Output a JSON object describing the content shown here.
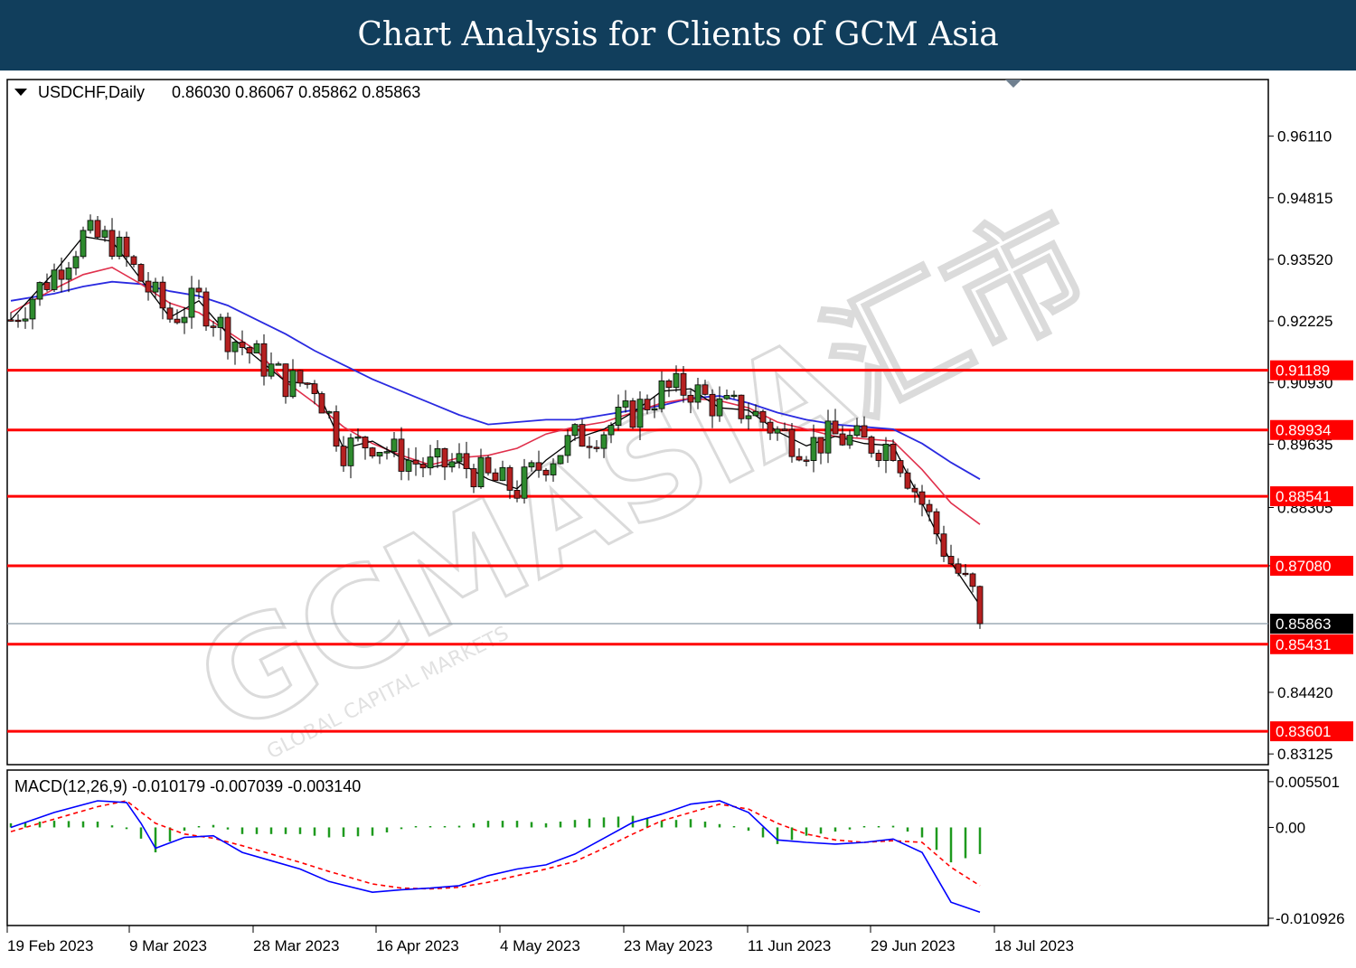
{
  "banner": {
    "title": "Chart Analysis for Clients of GCM Asia"
  },
  "price_panel": {
    "symbol_label": "USDCHF,Daily",
    "ohlc_label": "0.86030 0.86067 0.85862 0.85863",
    "y_ticks": [
      "0.96110",
      "0.94815",
      "0.93520",
      "0.92225",
      "0.90930",
      "0.89635",
      "0.88305",
      "0.87080",
      "0.84420",
      "0.83125"
    ],
    "levels": [
      "0.91189",
      "0.89934",
      "0.88541",
      "0.87080",
      "0.85431",
      "0.83601"
    ],
    "current_price": "0.85863",
    "watermark_text": "GCMASIA汇市",
    "watermark_sub": "GLOBAL CAPITAL MARKETS"
  },
  "macd_panel": {
    "label": "MACD(12,26,9) -0.010179 -0.007039 -0.003140",
    "y_ticks": [
      "0.005501",
      "0.00",
      "-0.010926"
    ]
  },
  "x_axis": {
    "labels": [
      "19 Feb 2023",
      "9 Mar 2023",
      "28 Mar 2023",
      "16 Apr 2023",
      "4 May 2023",
      "23 May 2023",
      "11 Jun 2023",
      "29 Jun 2023",
      "18 Jul 2023"
    ]
  },
  "colors": {
    "banner": "#113e5c",
    "level_line": "#ff0000",
    "ma_fast": "#000000",
    "ma_mid": "#e0304c",
    "ma_slow": "#2a2ae0",
    "bull": "#2e8b2e",
    "bear": "#b52020",
    "macd_line": "#0000ff",
    "signal_line": "#ff0000",
    "histogram": "#1e9a1e"
  },
  "chart_data": {
    "type": "candlestick",
    "title": "USDCHF,Daily",
    "ylim": [
      0.829,
      0.973
    ],
    "last_bar": {
      "open": 0.8603,
      "high": 0.86067,
      "low": 0.85862,
      "close": 0.85863
    },
    "support_resistance": [
      0.91189,
      0.89934,
      0.88541,
      0.8708,
      0.85431,
      0.83601
    ],
    "ma_fast": [
      [
        0,
        0.9225
      ],
      [
        6,
        0.9325
      ],
      [
        10,
        0.94
      ],
      [
        14,
        0.939
      ],
      [
        18,
        0.931
      ],
      [
        22,
        0.923
      ],
      [
        26,
        0.9265
      ],
      [
        30,
        0.9195
      ],
      [
        34,
        0.9145
      ],
      [
        38,
        0.9095
      ],
      [
        42,
        0.909
      ],
      [
        46,
        0.8955
      ],
      [
        50,
        0.897
      ],
      [
        54,
        0.8935
      ],
      [
        58,
        0.8915
      ],
      [
        62,
        0.8925
      ],
      [
        66,
        0.889
      ],
      [
        70,
        0.887
      ],
      [
        74,
        0.893
      ],
      [
        78,
        0.8975
      ],
      [
        82,
        0.8995
      ],
      [
        86,
        0.903
      ],
      [
        90,
        0.9075
      ],
      [
        94,
        0.908
      ],
      [
        98,
        0.904
      ],
      [
        102,
        0.9035
      ],
      [
        106,
        0.899
      ],
      [
        110,
        0.896
      ],
      [
        114,
        0.898
      ],
      [
        118,
        0.8965
      ],
      [
        122,
        0.896
      ],
      [
        126,
        0.884
      ],
      [
        130,
        0.8715
      ],
      [
        134,
        0.8625
      ]
    ],
    "ma_mid": [
      [
        0,
        0.924
      ],
      [
        6,
        0.929
      ],
      [
        10,
        0.932
      ],
      [
        14,
        0.9335
      ],
      [
        18,
        0.93
      ],
      [
        22,
        0.926
      ],
      [
        26,
        0.924
      ],
      [
        30,
        0.92
      ],
      [
        34,
        0.916
      ],
      [
        38,
        0.9095
      ],
      [
        42,
        0.905
      ],
      [
        46,
        0.9
      ],
      [
        50,
        0.8965
      ],
      [
        54,
        0.894
      ],
      [
        58,
        0.892
      ],
      [
        62,
        0.8935
      ],
      [
        66,
        0.894
      ],
      [
        70,
        0.8955
      ],
      [
        74,
        0.8985
      ],
      [
        78,
        0.9
      ],
      [
        82,
        0.901
      ],
      [
        86,
        0.903
      ],
      [
        90,
        0.905
      ],
      [
        94,
        0.906
      ],
      [
        98,
        0.9055
      ],
      [
        102,
        0.904
      ],
      [
        106,
        0.901
      ],
      [
        110,
        0.8995
      ],
      [
        114,
        0.898
      ],
      [
        118,
        0.8975
      ],
      [
        122,
        0.897
      ],
      [
        126,
        0.891
      ],
      [
        130,
        0.884
      ],
      [
        134,
        0.8795
      ]
    ],
    "ma_slow": [
      [
        0,
        0.9265
      ],
      [
        6,
        0.928
      ],
      [
        10,
        0.9295
      ],
      [
        14,
        0.9305
      ],
      [
        18,
        0.93
      ],
      [
        22,
        0.9285
      ],
      [
        26,
        0.9275
      ],
      [
        30,
        0.9255
      ],
      [
        34,
        0.9225
      ],
      [
        38,
        0.9195
      ],
      [
        42,
        0.916
      ],
      [
        46,
        0.913
      ],
      [
        50,
        0.91
      ],
      [
        54,
        0.9075
      ],
      [
        58,
        0.905
      ],
      [
        62,
        0.9025
      ],
      [
        66,
        0.9005
      ],
      [
        70,
        0.901
      ],
      [
        74,
        0.9015
      ],
      [
        78,
        0.9015
      ],
      [
        82,
        0.9025
      ],
      [
        86,
        0.9035
      ],
      [
        90,
        0.9045
      ],
      [
        94,
        0.906
      ],
      [
        98,
        0.9065
      ],
      [
        102,
        0.905
      ],
      [
        106,
        0.903
      ],
      [
        110,
        0.9015
      ],
      [
        114,
        0.9005
      ],
      [
        118,
        0.9
      ],
      [
        122,
        0.8995
      ],
      [
        126,
        0.8965
      ],
      [
        130,
        0.8925
      ],
      [
        134,
        0.889
      ]
    ],
    "macd": {
      "ylim": [
        -0.0118,
        0.0069
      ],
      "macd_line": [
        [
          0,
          0.0
        ],
        [
          6,
          0.0018
        ],
        [
          12,
          0.0032
        ],
        [
          16,
          0.003
        ],
        [
          18,
          0.0005
        ],
        [
          20,
          -0.0025
        ],
        [
          24,
          -0.0012
        ],
        [
          28,
          -0.001
        ],
        [
          32,
          -0.003
        ],
        [
          36,
          -0.004
        ],
        [
          40,
          -0.005
        ],
        [
          44,
          -0.0065
        ],
        [
          50,
          -0.0078
        ],
        [
          54,
          -0.0075
        ],
        [
          58,
          -0.0073
        ],
        [
          62,
          -0.007
        ],
        [
          66,
          -0.0058
        ],
        [
          70,
          -0.005
        ],
        [
          74,
          -0.0045
        ],
        [
          78,
          -0.0032
        ],
        [
          82,
          -0.0013
        ],
        [
          86,
          0.0006
        ],
        [
          90,
          0.0016
        ],
        [
          94,
          0.0028
        ],
        [
          98,
          0.0032
        ],
        [
          102,
          0.0018
        ],
        [
          106,
          -0.0015
        ],
        [
          110,
          -0.0018
        ],
        [
          114,
          -0.002
        ],
        [
          118,
          -0.0018
        ],
        [
          122,
          -0.0014
        ],
        [
          126,
          -0.003
        ],
        [
          130,
          -0.009
        ],
        [
          134,
          -0.0102
        ]
      ],
      "signal_line": [
        [
          0,
          -0.0005
        ],
        [
          6,
          0.001
        ],
        [
          12,
          0.0025
        ],
        [
          16,
          0.0032
        ],
        [
          20,
          0.0005
        ],
        [
          24,
          -0.0008
        ],
        [
          28,
          -0.0013
        ],
        [
          32,
          -0.0022
        ],
        [
          36,
          -0.0032
        ],
        [
          40,
          -0.0042
        ],
        [
          44,
          -0.0053
        ],
        [
          50,
          -0.0068
        ],
        [
          54,
          -0.0073
        ],
        [
          58,
          -0.0074
        ],
        [
          62,
          -0.0072
        ],
        [
          66,
          -0.0066
        ],
        [
          70,
          -0.0058
        ],
        [
          74,
          -0.005
        ],
        [
          78,
          -0.0041
        ],
        [
          82,
          -0.0025
        ],
        [
          86,
          -0.0008
        ],
        [
          90,
          0.0008
        ],
        [
          94,
          0.0018
        ],
        [
          98,
          0.0028
        ],
        [
          102,
          0.0022
        ],
        [
          106,
          0.0005
        ],
        [
          110,
          -0.0008
        ],
        [
          114,
          -0.0015
        ],
        [
          118,
          -0.0018
        ],
        [
          122,
          -0.0016
        ],
        [
          126,
          -0.0018
        ],
        [
          130,
          -0.0048
        ],
        [
          134,
          -0.007
        ]
      ]
    }
  }
}
